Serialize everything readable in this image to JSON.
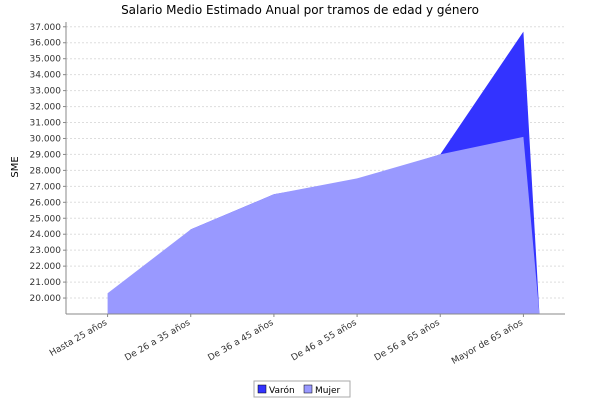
{
  "chart_data": {
    "type": "area",
    "title": "Salario Medio Estimado Anual por tramos de edad y género",
    "xlabel": "",
    "ylabel": "SME",
    "categories": [
      "Hasta 25  años",
      "De 26  a 35  años",
      "De 36  a 45  años",
      "De 46  a 55  años",
      "De 56  a 65  años",
      "Mayor de 65  años"
    ],
    "ylim": [
      19000,
      37300
    ],
    "yticks": [
      20000,
      21000,
      22000,
      23000,
      24000,
      25000,
      26000,
      27000,
      28000,
      29000,
      30000,
      31000,
      32000,
      33000,
      34000,
      35000,
      36000,
      37000
    ],
    "ytick_labels": [
      "20.000",
      "21.000",
      "22.000",
      "23.000",
      "24.000",
      "25.000",
      "26.000",
      "27.000",
      "28.000",
      "29.000",
      "30.000",
      "31.000",
      "32.000",
      "33.000",
      "34.000",
      "35.000",
      "36.000",
      "37.000"
    ],
    "series": [
      {
        "name": "Varón",
        "color": "#3333ff",
        "values": [
          19000,
          24300,
          26500,
          27400,
          29000,
          36700
        ]
      },
      {
        "name": "Mujer",
        "color": "#9999ff",
        "values": [
          20300,
          24300,
          26500,
          27500,
          29000,
          30100
        ]
      }
    ],
    "grid": true,
    "legend": "bottom"
  }
}
